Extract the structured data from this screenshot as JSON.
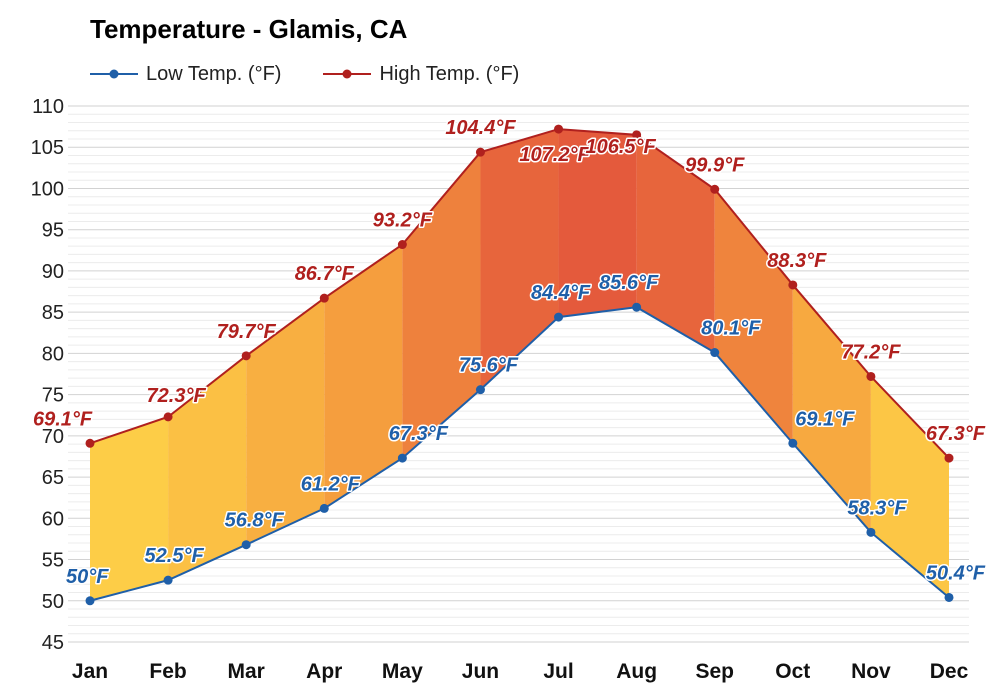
{
  "chart_data": {
    "type": "area",
    "title": "Temperature - Glamis, CA",
    "categories": [
      "Jan",
      "Feb",
      "Mar",
      "Apr",
      "May",
      "Jun",
      "Jul",
      "Aug",
      "Sep",
      "Oct",
      "Nov",
      "Dec"
    ],
    "series": [
      {
        "name": "Low Temp. (°F)",
        "color": "#1f5fa8",
        "values": [
          50,
          52.5,
          56.8,
          61.2,
          67.3,
          75.6,
          84.4,
          85.6,
          80.1,
          69.1,
          58.3,
          50.4
        ],
        "labels": [
          "50°F",
          "52.5°F",
          "56.8°F",
          "61.2°F",
          "67.3°F",
          "75.6°F",
          "84.4°F",
          "85.6°F",
          "80.1°F",
          "69.1°F",
          "58.3°F",
          "50.4°F"
        ]
      },
      {
        "name": "High Temp. (°F)",
        "color": "#b0201e",
        "values": [
          69.1,
          72.3,
          79.7,
          86.7,
          93.2,
          104.4,
          107.2,
          106.5,
          99.9,
          88.3,
          77.2,
          67.3
        ],
        "labels": [
          "69.1°F",
          "72.3°F",
          "79.7°F",
          "86.7°F",
          "93.2°F",
          "104.4°F",
          "107.2°F",
          "106.5°F",
          "99.9°F",
          "88.3°F",
          "77.2°F",
          "67.3°F"
        ]
      }
    ],
    "ylim": [
      45,
      110
    ],
    "yticks": [
      "45",
      "50",
      "55",
      "60",
      "65",
      "70",
      "75",
      "80",
      "85",
      "90",
      "95",
      "100",
      "105",
      "110"
    ],
    "xlabel": "",
    "ylabel": "",
    "grid": true,
    "legend": "top-left",
    "fill_colors": {
      "cool": "#fdd047",
      "warm": "#f59b3e",
      "hot": "#e45a3c"
    }
  }
}
